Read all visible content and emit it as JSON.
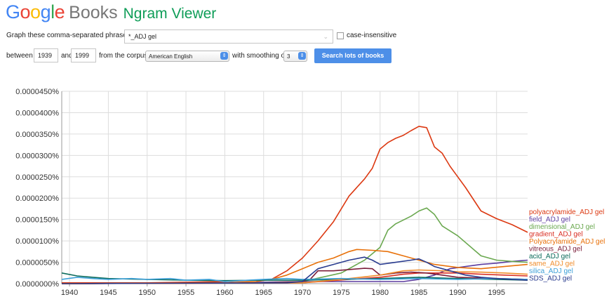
{
  "header": {
    "google_letters": [
      {
        "ch": "G",
        "color": "#4285f4"
      },
      {
        "ch": "o",
        "color": "#ea4335"
      },
      {
        "ch": "o",
        "color": "#fbbc05"
      },
      {
        "ch": "g",
        "color": "#4285f4"
      },
      {
        "ch": "l",
        "color": "#34a853"
      },
      {
        "ch": "e",
        "color": "#ea4335"
      }
    ],
    "books": "Books",
    "ngram": "Ngram Viewer"
  },
  "form": {
    "phrases_label": "Graph these comma-separated phrases:",
    "phrases_value": "*_ADJ gel",
    "case_insensitive_label": "case-insensitive",
    "between_label": "between",
    "start_year": "1939",
    "and_label": "and",
    "end_year": "1999",
    "corpus_label": "from the corpus",
    "corpus_value": "American English",
    "smoothing_label": "with smoothing of",
    "smoothing_value": "3",
    "search_button": "Search lots of books"
  },
  "chart_data": {
    "type": "line",
    "x_range": [
      1939,
      1999
    ],
    "ylim": [
      0,
      4.5e-07
    ],
    "y_ticks": [
      "0.0000000%",
      "0.0000050%",
      "0.0000100%",
      "0.0000150%",
      "0.0000200%",
      "0.0000250%",
      "0.0000300%",
      "0.0000350%",
      "0.0000400%",
      "0.0000450%"
    ],
    "x_ticks": [
      1940,
      1945,
      1950,
      1955,
      1960,
      1965,
      1970,
      1975,
      1980,
      1985,
      1990,
      1995
    ],
    "grid": true,
    "legend_position": "right",
    "series": [
      {
        "name": "polyacrylamide_ADJ gel",
        "color": "#dc3912",
        "points": [
          [
            1939,
            0.02
          ],
          [
            1950,
            0.02
          ],
          [
            1960,
            0.05
          ],
          [
            1964,
            0.08
          ],
          [
            1966,
            0.1
          ],
          [
            1968,
            0.3
          ],
          [
            1970,
            0.6
          ],
          [
            1972,
            1.0
          ],
          [
            1974,
            1.45
          ],
          [
            1976,
            2.05
          ],
          [
            1978,
            2.45
          ],
          [
            1979,
            2.7
          ],
          [
            1980,
            3.15
          ],
          [
            1981,
            3.3
          ],
          [
            1982,
            3.4
          ],
          [
            1983,
            3.47
          ],
          [
            1984,
            3.58
          ],
          [
            1985,
            3.68
          ],
          [
            1986,
            3.65
          ],
          [
            1987,
            3.2
          ],
          [
            1988,
            3.05
          ],
          [
            1989,
            2.75
          ],
          [
            1990,
            2.5
          ],
          [
            1991,
            2.25
          ],
          [
            1993,
            1.7
          ],
          [
            1995,
            1.52
          ],
          [
            1997,
            1.38
          ],
          [
            1999,
            1.2
          ]
        ]
      },
      {
        "name": "field_ADJ gel",
        "color": "#5b3c9f",
        "points": [
          [
            1939,
            0.0
          ],
          [
            1960,
            0.02
          ],
          [
            1970,
            0.05
          ],
          [
            1980,
            0.05
          ],
          [
            1983,
            0.05
          ],
          [
            1985,
            0.1
          ],
          [
            1987,
            0.2
          ],
          [
            1989,
            0.35
          ],
          [
            1991,
            0.4
          ],
          [
            1993,
            0.45
          ],
          [
            1995,
            0.48
          ],
          [
            1997,
            0.52
          ],
          [
            1999,
            0.55
          ]
        ]
      },
      {
        "name": "dimensional_ADJ gel",
        "color": "#6aa84f",
        "points": [
          [
            1939,
            0.0
          ],
          [
            1965,
            0.02
          ],
          [
            1970,
            0.05
          ],
          [
            1975,
            0.25
          ],
          [
            1978,
            0.55
          ],
          [
            1980,
            0.85
          ],
          [
            1981,
            1.25
          ],
          [
            1982,
            1.4
          ],
          [
            1984,
            1.58
          ],
          [
            1985,
            1.7
          ],
          [
            1986,
            1.77
          ],
          [
            1987,
            1.62
          ],
          [
            1988,
            1.35
          ],
          [
            1990,
            1.12
          ],
          [
            1993,
            0.65
          ],
          [
            1995,
            0.55
          ],
          [
            1997,
            0.52
          ],
          [
            1999,
            0.5
          ]
        ]
      },
      {
        "name": "gradient_ADJ gel",
        "color": "#d93025",
        "points": [
          [
            1939,
            0.0
          ],
          [
            1970,
            0.02
          ],
          [
            1976,
            0.1
          ],
          [
            1980,
            0.15
          ],
          [
            1983,
            0.22
          ],
          [
            1985,
            0.25
          ],
          [
            1987,
            0.25
          ],
          [
            1990,
            0.25
          ],
          [
            1993,
            0.22
          ],
          [
            1996,
            0.2
          ],
          [
            1999,
            0.18
          ]
        ]
      },
      {
        "name": "Polyacrylamide_ADJ gel",
        "color": "#e8710a",
        "points": [
          [
            1939,
            0.0
          ],
          [
            1960,
            0.02
          ],
          [
            1964,
            0.05
          ],
          [
            1966,
            0.1
          ],
          [
            1968,
            0.2
          ],
          [
            1970,
            0.35
          ],
          [
            1972,
            0.5
          ],
          [
            1974,
            0.6
          ],
          [
            1976,
            0.75
          ],
          [
            1977,
            0.8
          ],
          [
            1979,
            0.78
          ],
          [
            1981,
            0.75
          ],
          [
            1983,
            0.65
          ],
          [
            1985,
            0.55
          ],
          [
            1987,
            0.45
          ],
          [
            1990,
            0.38
          ],
          [
            1993,
            0.35
          ],
          [
            1996,
            0.4
          ],
          [
            1999,
            0.45
          ]
        ]
      },
      {
        "name": "vitreous_ADJ gel",
        "color": "#7b1e3a",
        "points": [
          [
            1939,
            0.0
          ],
          [
            1965,
            0.02
          ],
          [
            1970,
            0.05
          ],
          [
            1971,
            0.1
          ],
          [
            1972,
            0.3
          ],
          [
            1974,
            0.3
          ],
          [
            1976,
            0.33
          ],
          [
            1978,
            0.36
          ],
          [
            1979,
            0.35
          ],
          [
            1980,
            0.2
          ],
          [
            1982,
            0.25
          ],
          [
            1984,
            0.27
          ],
          [
            1986,
            0.25
          ],
          [
            1988,
            0.2
          ],
          [
            1990,
            0.15
          ],
          [
            1995,
            0.12
          ],
          [
            1999,
            0.1
          ]
        ]
      },
      {
        "name": "acid_ADJ gel",
        "color": "#0b6b5b",
        "points": [
          [
            1939,
            0.25
          ],
          [
            1941,
            0.18
          ],
          [
            1943,
            0.15
          ],
          [
            1945,
            0.12
          ],
          [
            1950,
            0.1
          ],
          [
            1955,
            0.08
          ],
          [
            1960,
            0.07
          ],
          [
            1965,
            0.08
          ],
          [
            1970,
            0.08
          ],
          [
            1975,
            0.1
          ],
          [
            1980,
            0.12
          ],
          [
            1985,
            0.15
          ],
          [
            1990,
            0.12
          ],
          [
            1995,
            0.1
          ],
          [
            1999,
            0.08
          ]
        ]
      },
      {
        "name": "same_ADJ gel",
        "color": "#f08c2a",
        "points": [
          [
            1939,
            0.0
          ],
          [
            1970,
            0.02
          ],
          [
            1975,
            0.1
          ],
          [
            1980,
            0.2
          ],
          [
            1983,
            0.3
          ],
          [
            1985,
            0.32
          ],
          [
            1988,
            0.3
          ],
          [
            1990,
            0.28
          ],
          [
            1993,
            0.27
          ],
          [
            1996,
            0.25
          ],
          [
            1999,
            0.22
          ]
        ]
      },
      {
        "name": "silica_ADJ gel",
        "color": "#3ea0d8",
        "points": [
          [
            1939,
            0.1
          ],
          [
            1941,
            0.15
          ],
          [
            1943,
            0.12
          ],
          [
            1945,
            0.1
          ],
          [
            1948,
            0.12
          ],
          [
            1950,
            0.1
          ],
          [
            1953,
            0.12
          ],
          [
            1955,
            0.08
          ],
          [
            1958,
            0.1
          ],
          [
            1960,
            0.05
          ],
          [
            1963,
            0.08
          ],
          [
            1965,
            0.1
          ],
          [
            1968,
            0.12
          ],
          [
            1970,
            0.1
          ],
          [
            1975,
            0.12
          ],
          [
            1980,
            0.1
          ],
          [
            1985,
            0.12
          ],
          [
            1990,
            0.1
          ],
          [
            1995,
            0.12
          ],
          [
            1999,
            0.1
          ]
        ]
      },
      {
        "name": "SDS_ADJ gel",
        "color": "#2a3c8f",
        "points": [
          [
            1939,
            0.0
          ],
          [
            1968,
            0.02
          ],
          [
            1970,
            0.05
          ],
          [
            1972,
            0.35
          ],
          [
            1974,
            0.45
          ],
          [
            1976,
            0.55
          ],
          [
            1978,
            0.62
          ],
          [
            1979,
            0.55
          ],
          [
            1980,
            0.45
          ],
          [
            1982,
            0.5
          ],
          [
            1984,
            0.55
          ],
          [
            1985,
            0.58
          ],
          [
            1986,
            0.5
          ],
          [
            1987,
            0.4
          ],
          [
            1989,
            0.3
          ],
          [
            1991,
            0.2
          ],
          [
            1993,
            0.15
          ],
          [
            1995,
            0.12
          ],
          [
            1999,
            0.08
          ]
        ]
      }
    ]
  }
}
